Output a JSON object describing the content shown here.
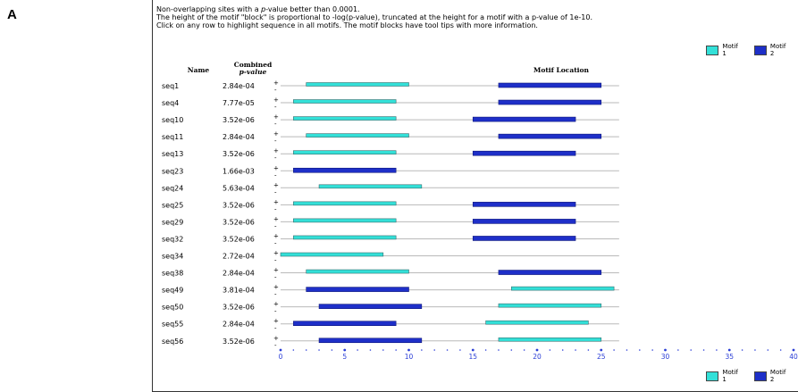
{
  "panel_label": "A",
  "notes": {
    "line1_pre": "Non-overlapping sites with a ",
    "line1_italic": "p",
    "line1_post": "-value better than 0.0001.",
    "line2": "The height of the motif \"block\" is proportional to -log(p-value), truncated at the height for a motif with a p-value of 1e-10.",
    "line3": "Click on any row to highlight sequence in all motifs. The motif blocks have tool tips with more information."
  },
  "legend": [
    {
      "name": "Motif 1",
      "color": "#33e0d8"
    },
    {
      "name": "Motif 2",
      "color": "#1e2fc8"
    }
  ],
  "headers": {
    "name": "Name",
    "combined_line1": "Combined",
    "combined_line2": "p-value",
    "location": "Motif Location"
  },
  "strand_plus": "+",
  "strand_minus": "-",
  "chart_data": {
    "type": "bar",
    "xlim": [
      0,
      40
    ],
    "x_ticks": [
      0,
      5,
      10,
      15,
      20,
      25,
      30,
      35,
      40
    ],
    "rows": [
      {
        "name": "seq1",
        "pvalue": "2.84e-04",
        "sites": [
          {
            "motif": 1,
            "start": 2,
            "end": 10
          },
          {
            "motif": 2,
            "start": 17,
            "end": 25
          }
        ]
      },
      {
        "name": "seq4",
        "pvalue": "7.77e-05",
        "sites": [
          {
            "motif": 1,
            "start": 1,
            "end": 9
          },
          {
            "motif": 2,
            "start": 17,
            "end": 25
          }
        ]
      },
      {
        "name": "seq10",
        "pvalue": "3.52e-06",
        "sites": [
          {
            "motif": 1,
            "start": 1,
            "end": 9
          },
          {
            "motif": 2,
            "start": 15,
            "end": 23
          }
        ]
      },
      {
        "name": "seq11",
        "pvalue": "2.84e-04",
        "sites": [
          {
            "motif": 1,
            "start": 2,
            "end": 10
          },
          {
            "motif": 2,
            "start": 17,
            "end": 25
          }
        ]
      },
      {
        "name": "seq13",
        "pvalue": "3.52e-06",
        "sites": [
          {
            "motif": 1,
            "start": 1,
            "end": 9
          },
          {
            "motif": 2,
            "start": 15,
            "end": 23
          }
        ]
      },
      {
        "name": "seq23",
        "pvalue": "1.66e-03",
        "sites": [
          {
            "motif": 2,
            "start": 1,
            "end": 9
          }
        ]
      },
      {
        "name": "seq24",
        "pvalue": "5.63e-04",
        "sites": [
          {
            "motif": 1,
            "start": 3,
            "end": 11
          }
        ]
      },
      {
        "name": "seq25",
        "pvalue": "3.52e-06",
        "sites": [
          {
            "motif": 1,
            "start": 1,
            "end": 9
          },
          {
            "motif": 2,
            "start": 15,
            "end": 23
          }
        ]
      },
      {
        "name": "seq29",
        "pvalue": "3.52e-06",
        "sites": [
          {
            "motif": 1,
            "start": 1,
            "end": 9
          },
          {
            "motif": 2,
            "start": 15,
            "end": 23
          }
        ]
      },
      {
        "name": "seq32",
        "pvalue": "3.52e-06",
        "sites": [
          {
            "motif": 1,
            "start": 1,
            "end": 9
          },
          {
            "motif": 2,
            "start": 15,
            "end": 23
          }
        ]
      },
      {
        "name": "seq34",
        "pvalue": "2.72e-04",
        "sites": [
          {
            "motif": 1,
            "start": 0,
            "end": 8
          }
        ]
      },
      {
        "name": "seq38",
        "pvalue": "2.84e-04",
        "sites": [
          {
            "motif": 1,
            "start": 2,
            "end": 10
          },
          {
            "motif": 2,
            "start": 17,
            "end": 25
          }
        ]
      },
      {
        "name": "seq49",
        "pvalue": "3.81e-04",
        "sites": [
          {
            "motif": 2,
            "start": 2,
            "end": 10
          },
          {
            "motif": 1,
            "start": 18,
            "end": 26
          }
        ]
      },
      {
        "name": "seq50",
        "pvalue": "3.52e-06",
        "sites": [
          {
            "motif": 2,
            "start": 3,
            "end": 11
          },
          {
            "motif": 1,
            "start": 17,
            "end": 25
          }
        ]
      },
      {
        "name": "seq55",
        "pvalue": "2.84e-04",
        "sites": [
          {
            "motif": 2,
            "start": 1,
            "end": 9
          },
          {
            "motif": 1,
            "start": 16,
            "end": 24
          }
        ]
      },
      {
        "name": "seq56",
        "pvalue": "3.52e-06",
        "sites": [
          {
            "motif": 2,
            "start": 3,
            "end": 11
          },
          {
            "motif": 1,
            "start": 17,
            "end": 25
          }
        ]
      }
    ]
  }
}
